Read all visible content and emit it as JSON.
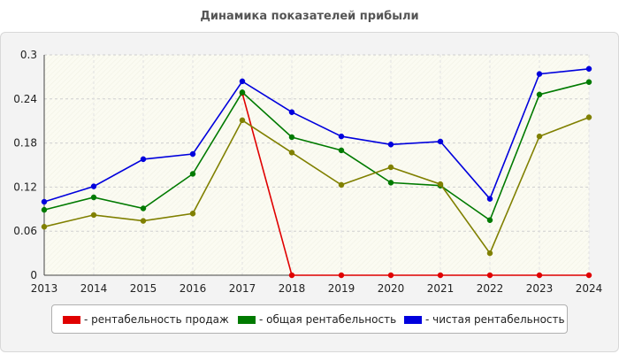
{
  "chart_data": {
    "type": "line",
    "title": "Динамика показателей прибыли",
    "xlabel": "",
    "ylabel": "",
    "categories": [
      "2013",
      "2014",
      "2015",
      "2016",
      "2017",
      "2018",
      "2019",
      "2020",
      "2021",
      "2022",
      "2023",
      "2024"
    ],
    "ylim": [
      0,
      0.3
    ],
    "yticks": [
      "0",
      "0.06",
      "0.12",
      "0.18",
      "0.24",
      "0.3"
    ],
    "grid": true,
    "legend_position": "bottom",
    "series": [
      {
        "name": "- рентабельность продаж",
        "color": "#e00000",
        "values": [
          null,
          null,
          null,
          null,
          0.248,
          0,
          0,
          0,
          0,
          0,
          0,
          0
        ]
      },
      {
        "name": "- общая рентабельность",
        "color": "#007a00",
        "values": [
          0.089,
          0.106,
          0.091,
          0.138,
          0.249,
          0.188,
          0.17,
          0.126,
          0.122,
          0.075,
          0.246,
          0.263
        ]
      },
      {
        "name": "- чистая рентабельность",
        "color": "#0000dd",
        "values": [
          0.1,
          0.121,
          0.158,
          0.165,
          0.264,
          0.222,
          0.189,
          0.178,
          0.182,
          0.104,
          0.274,
          0.281
        ]
      },
      {
        "name": "",
        "color": "#808000",
        "values": [
          0.066,
          0.082,
          0.074,
          0.084,
          0.211,
          0.167,
          0.123,
          0.147,
          0.124,
          0.03,
          0.189,
          0.215
        ]
      }
    ]
  }
}
